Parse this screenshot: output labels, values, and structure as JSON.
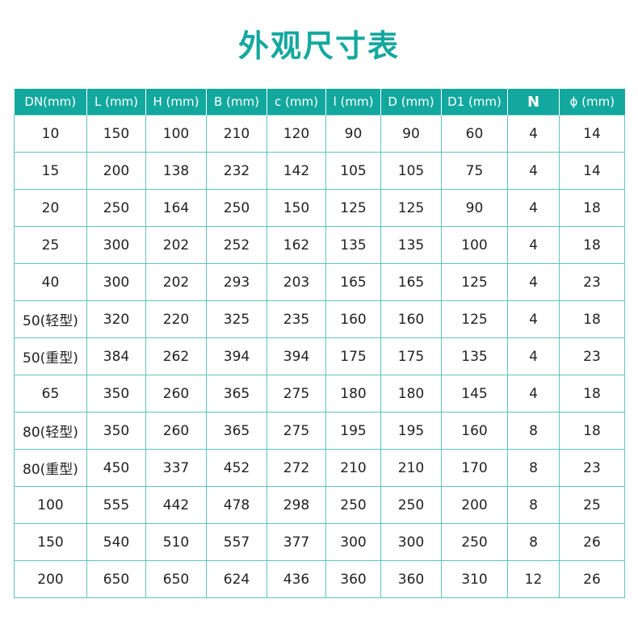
{
  "title": "外观尺寸表",
  "headers": [
    "DN(mm)",
    "L (mm)",
    "H (mm)",
    "B (mm)",
    "c (mm)",
    "l (mm)",
    "D (mm)",
    "D1 (mm)",
    "N",
    "ϕ (mm)"
  ],
  "rows": [
    [
      "10",
      "150",
      "100",
      "210",
      "120",
      "90",
      "90",
      "60",
      "4",
      "14"
    ],
    [
      "15",
      "200",
      "138",
      "232",
      "142",
      "105",
      "105",
      "75",
      "4",
      "14"
    ],
    [
      "20",
      "250",
      "164",
      "250",
      "150",
      "125",
      "125",
      "90",
      "4",
      "18"
    ],
    [
      "25",
      "300",
      "202",
      "252",
      "162",
      "135",
      "135",
      "100",
      "4",
      "18"
    ],
    [
      "40",
      "300",
      "202",
      "293",
      "203",
      "165",
      "165",
      "125",
      "4",
      "23"
    ],
    [
      "50(轻型)",
      "320",
      "220",
      "325",
      "235",
      "160",
      "160",
      "125",
      "4",
      "18"
    ],
    [
      "50(重型)",
      "384",
      "262",
      "394",
      "394",
      "175",
      "175",
      "135",
      "4",
      "23"
    ],
    [
      "65",
      "350",
      "260",
      "365",
      "275",
      "180",
      "180",
      "145",
      "4",
      "18"
    ],
    [
      "80(轻型)",
      "350",
      "260",
      "365",
      "275",
      "195",
      "195",
      "160",
      "8",
      "18"
    ],
    [
      "80(重型)",
      "450",
      "337",
      "452",
      "272",
      "210",
      "210",
      "170",
      "8",
      "23"
    ],
    [
      "100",
      "555",
      "442",
      "478",
      "298",
      "250",
      "250",
      "200",
      "8",
      "25"
    ],
    [
      "150",
      "540",
      "510",
      "557",
      "377",
      "300",
      "300",
      "250",
      "8",
      "26"
    ],
    [
      "200",
      "650",
      "650",
      "624",
      "436",
      "360",
      "360",
      "310",
      "12",
      "26"
    ]
  ],
  "colors": {
    "accent": "#13a89e",
    "border": "#5fc4bd"
  }
}
